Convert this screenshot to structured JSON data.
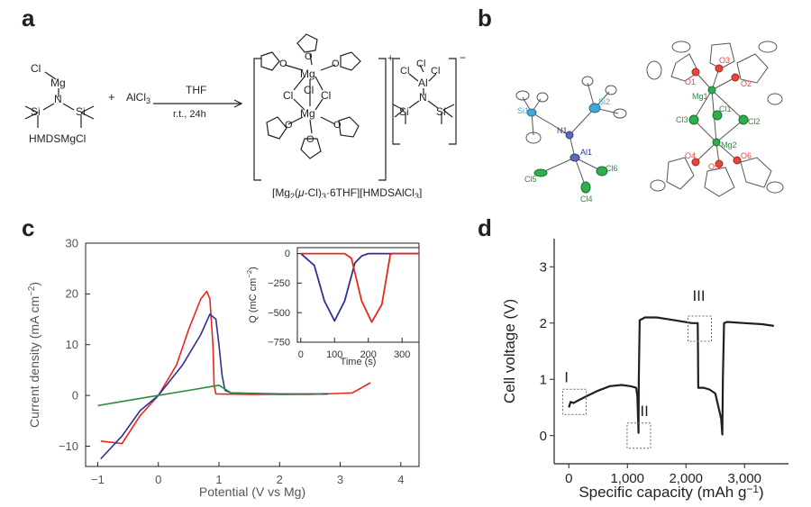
{
  "panels": {
    "a": {
      "letter": "a",
      "reactant1": "HMDSMgCl",
      "plus": "+",
      "reactant2": "AlCl3",
      "conditions_top": "THF",
      "conditions_bottom": "r.t., 24h",
      "product_caption": "[Mg2(μ-Cl)3·6THF][HMDSAlCl3]",
      "cation_charge": "+",
      "anion_charge": "−",
      "labels": {
        "Mg": "Mg",
        "Cl": "Cl",
        "Si": "Si",
        "N": "N",
        "Al": "Al",
        "O": "O"
      }
    },
    "b": {
      "letter": "b",
      "left_atoms": [
        "Si1",
        "Si2",
        "N1",
        "Al1",
        "Cl5",
        "Cl4",
        "Cl6"
      ],
      "right_atoms": [
        "O1",
        "O3",
        "O2",
        "Mg1",
        "Cl3",
        "Cl1",
        "Cl2",
        "Mg2",
        "O4",
        "O5",
        "O6"
      ]
    },
    "c": {
      "letter": "c",
      "colors": {
        "red": "#e8261c",
        "blue": "#2e3192",
        "green": "#2a8c3c"
      }
    },
    "d": {
      "letter": "d",
      "annotations": [
        "I",
        "II",
        "III"
      ]
    }
  },
  "chart_data": [
    {
      "type": "line",
      "panel": "c",
      "xlabel": "Potential (V vs Mg)",
      "ylabel": "Current density (mA cm−2)",
      "xlim": [
        -1.2,
        4.3
      ],
      "ylim": [
        -14,
        30
      ],
      "xticks": [
        "−1",
        "0",
        "1",
        "2",
        "3",
        "4"
      ],
      "yticks": [
        "−10",
        "0",
        "10",
        "20",
        "30"
      ],
      "series": [
        {
          "color": "#e8261c",
          "x": [
            -0.95,
            -0.6,
            -0.3,
            0,
            0.3,
            0.5,
            0.7,
            0.8,
            0.85,
            0.9,
            0.92,
            0.95,
            1.5,
            2.5,
            3.2,
            3.5
          ],
          "y": [
            -9,
            -9.5,
            -4,
            0,
            6,
            13,
            19,
            20.5,
            19,
            10,
            2,
            0.3,
            0.2,
            0.2,
            0.5,
            2.5
          ]
        },
        {
          "color": "#2e3192",
          "x": [
            -0.95,
            -0.6,
            -0.3,
            0,
            0.4,
            0.7,
            0.85,
            0.95,
            1.0,
            1.05,
            1.1,
            1.2,
            2,
            2.8
          ],
          "y": [
            -12.5,
            -8,
            -3,
            0,
            6,
            12,
            16,
            15,
            10,
            4,
            1,
            0.5,
            0.3,
            0.3
          ]
        },
        {
          "color": "#2a8c3c",
          "x": [
            -1,
            -0.5,
            0,
            0.5,
            1.0,
            1.2,
            2,
            2.7
          ],
          "y": [
            -2,
            -1,
            0,
            1,
            2,
            0.5,
            0.2,
            0.3
          ]
        }
      ]
    },
    {
      "type": "line",
      "panel": "c-inset",
      "xlabel": "Time (s)",
      "ylabel": "Q (mC cm−2)",
      "xlim": [
        -10,
        350
      ],
      "ylim": [
        -750,
        50
      ],
      "xticks": [
        "0",
        "100",
        "200",
        "300"
      ],
      "yticks": [
        "0",
        "−250",
        "−500",
        "−750"
      ],
      "series": [
        {
          "color": "#2e3192",
          "x": [
            0,
            40,
            70,
            100,
            130,
            160,
            180,
            200,
            260,
            350
          ],
          "y": [
            0,
            -100,
            -400,
            -570,
            -400,
            -80,
            -20,
            0,
            0,
            0
          ]
        },
        {
          "color": "#e8261c",
          "x": [
            0,
            130,
            150,
            180,
            210,
            240,
            265,
            270,
            350
          ],
          "y": [
            0,
            0,
            -40,
            -400,
            -580,
            -430,
            -10,
            0,
            0
          ]
        }
      ]
    },
    {
      "type": "line",
      "panel": "d",
      "xlabel": "Specific capacity (mAh g−1)",
      "ylabel": "Cell voltage (V)",
      "xlim": [
        -250,
        3750
      ],
      "ylim": [
        -0.5,
        3.5
      ],
      "xticks": [
        "0",
        "1,000",
        "2,000",
        "3,000"
      ],
      "yticks": [
        "0",
        "1",
        "2",
        "3"
      ],
      "series": [
        {
          "color": "#231f20",
          "x": [
            0,
            30,
            80,
            150,
            300,
            500,
            700,
            900,
            1050,
            1150,
            1170,
            1180,
            1190,
            1195,
            1210,
            1300,
            1500,
            1800,
            2100,
            2200,
            2205,
            2210,
            2300,
            2400,
            2500,
            2600,
            2620,
            2630,
            2650,
            2700,
            3000,
            3300,
            3500
          ],
          "y": [
            0.5,
            0.6,
            0.58,
            0.62,
            0.7,
            0.8,
            0.88,
            0.9,
            0.88,
            0.85,
            0.7,
            0.4,
            0.05,
            1.0,
            2.05,
            2.1,
            2.1,
            2.05,
            2.0,
            2.0,
            1.5,
            0.85,
            0.85,
            0.82,
            0.75,
            0.3,
            0.02,
            1.0,
            2.0,
            2.02,
            2.0,
            1.98,
            1.95
          ]
        }
      ]
    }
  ]
}
